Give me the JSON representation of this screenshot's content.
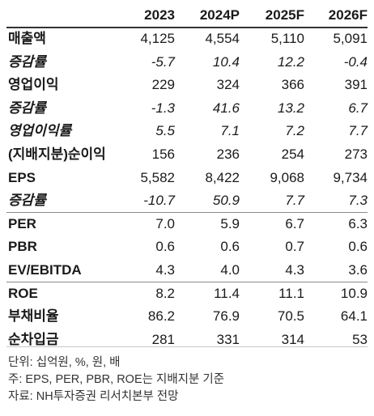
{
  "table": {
    "headers": [
      "",
      "2023",
      "2024P",
      "2025F",
      "2026F"
    ],
    "rows": [
      {
        "label": "매출액",
        "values": [
          "4,125",
          "4,554",
          "5,110",
          "5,091"
        ],
        "italic": false
      },
      {
        "label": "증감률",
        "values": [
          "-5.7",
          "10.4",
          "12.2",
          "-0.4"
        ],
        "italic": true
      },
      {
        "label": "영업이익",
        "values": [
          "229",
          "324",
          "366",
          "391"
        ],
        "italic": false
      },
      {
        "label": "증감률",
        "values": [
          "-1.3",
          "41.6",
          "13.2",
          "6.7"
        ],
        "italic": true
      },
      {
        "label": "영업이익률",
        "values": [
          "5.5",
          "7.1",
          "7.2",
          "7.7"
        ],
        "italic": true
      },
      {
        "label": "(지배지분)순이익",
        "values": [
          "156",
          "236",
          "254",
          "273"
        ],
        "italic": false
      },
      {
        "label": "EPS",
        "values": [
          "5,582",
          "8,422",
          "9,068",
          "9,734"
        ],
        "italic": false
      },
      {
        "label": "증감률",
        "values": [
          "-10.7",
          "50.9",
          "7.7",
          "7.3"
        ],
        "italic": true
      },
      {
        "label": "PER",
        "values": [
          "7.0",
          "5.9",
          "6.7",
          "6.3"
        ],
        "italic": false
      },
      {
        "label": "PBR",
        "values": [
          "0.6",
          "0.6",
          "0.7",
          "0.6"
        ],
        "italic": false
      },
      {
        "label": "EV/EBITDA",
        "values": [
          "4.3",
          "4.0",
          "4.3",
          "3.6"
        ],
        "italic": false
      },
      {
        "label": "ROE",
        "values": [
          "8.2",
          "11.4",
          "11.1",
          "10.9"
        ],
        "italic": false
      },
      {
        "label": "부채비율",
        "values": [
          "86.2",
          "76.9",
          "70.5",
          "64.1"
        ],
        "italic": false
      },
      {
        "label": "순차입금",
        "values": [
          "281",
          "331",
          "314",
          "53"
        ],
        "italic": false
      }
    ]
  },
  "notes": [
    "단위: 십억원, %, 원, 배",
    "주: EPS, PER, PBR, ROE는 지배지분 기준",
    "자료: NH투자증권 리서치본부 전망"
  ]
}
